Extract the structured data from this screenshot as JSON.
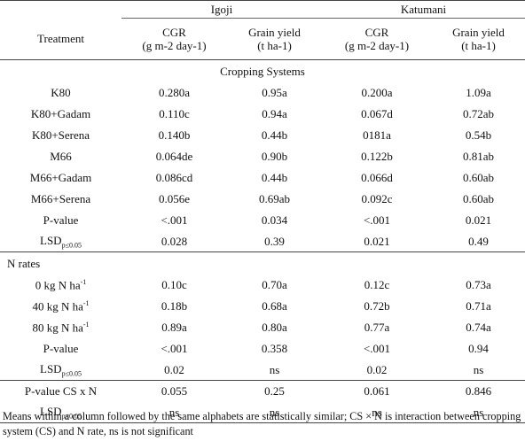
{
  "header": {
    "treatment": "Treatment",
    "site1": "Igoji",
    "site2": "Katumani",
    "cgr_line1": "CGR",
    "cgr_line2": "(g m-2 day-1)",
    "yield_line1": "Grain yield",
    "yield_line2": "(t ha-1)"
  },
  "cropping": {
    "title": "Cropping Systems",
    "rows": [
      {
        "t": "K80",
        "v": [
          "0.280a",
          "0.95a",
          "0.200a",
          "1.09a"
        ]
      },
      {
        "t": "K80+Gadam",
        "v": [
          "0.110c",
          "0.94a",
          "0.067d",
          "0.72ab"
        ]
      },
      {
        "t": "K80+Serena",
        "v": [
          "0.140b",
          "0.44b",
          "0181a",
          "0.54b"
        ]
      },
      {
        "t": "M66",
        "v": [
          "0.064de",
          "0.90b",
          "0.122b",
          "0.81ab"
        ]
      },
      {
        "t": "M66+Gadam",
        "v": [
          "0.086cd",
          "0.44b",
          "0.066d",
          "0.60ab"
        ]
      },
      {
        "t": "M66+Serena",
        "v": [
          "0.056e",
          "0.69ab",
          "0.092c",
          "0.60ab"
        ]
      },
      {
        "t": "P-value",
        "v": [
          "<.001",
          "0.034",
          "<.001",
          "0.021"
        ]
      }
    ],
    "lsd": {
      "label": "LSD",
      "sub": "p≤0.05",
      "v": [
        "0.028",
        "0.39",
        "0.021",
        "0.49"
      ]
    }
  },
  "nrates": {
    "title": "N rates",
    "unit": "kg N ha",
    "unit_sup": "-1",
    "rows": [
      {
        "n": "0",
        "v": [
          "0.10c",
          "0.70a",
          "0.12c",
          "0.73a"
        ]
      },
      {
        "n": "40",
        "v": [
          "0.18b",
          "0.68a",
          "0.72b",
          "0.71a"
        ]
      },
      {
        "n": "80",
        "v": [
          "0.89a",
          "0.80a",
          "0.77a",
          "0.74a"
        ]
      }
    ],
    "pvalue": {
      "t": "P-value",
      "v": [
        "<.001",
        "0.358",
        "<.001",
        "0.94"
      ]
    },
    "lsd": {
      "label": "LSD",
      "sub": "p≤0.05",
      "v": [
        "0.02",
        "ns",
        "0.02",
        "ns"
      ]
    }
  },
  "interaction": {
    "pvalue": {
      "t": "P-value CS x N",
      "v": [
        "0.055",
        "0.25",
        "0.061",
        "0.846"
      ]
    },
    "lsd": {
      "label": "LSD",
      "sub": "p≤0.05",
      "v": [
        "ns",
        "ns",
        "ns",
        "ns"
      ]
    }
  },
  "footnote": "Means within a column followed by the same alphabets are statistically similar; CS × N is interaction between cropping system (CS) and N rate, ns is not significant"
}
